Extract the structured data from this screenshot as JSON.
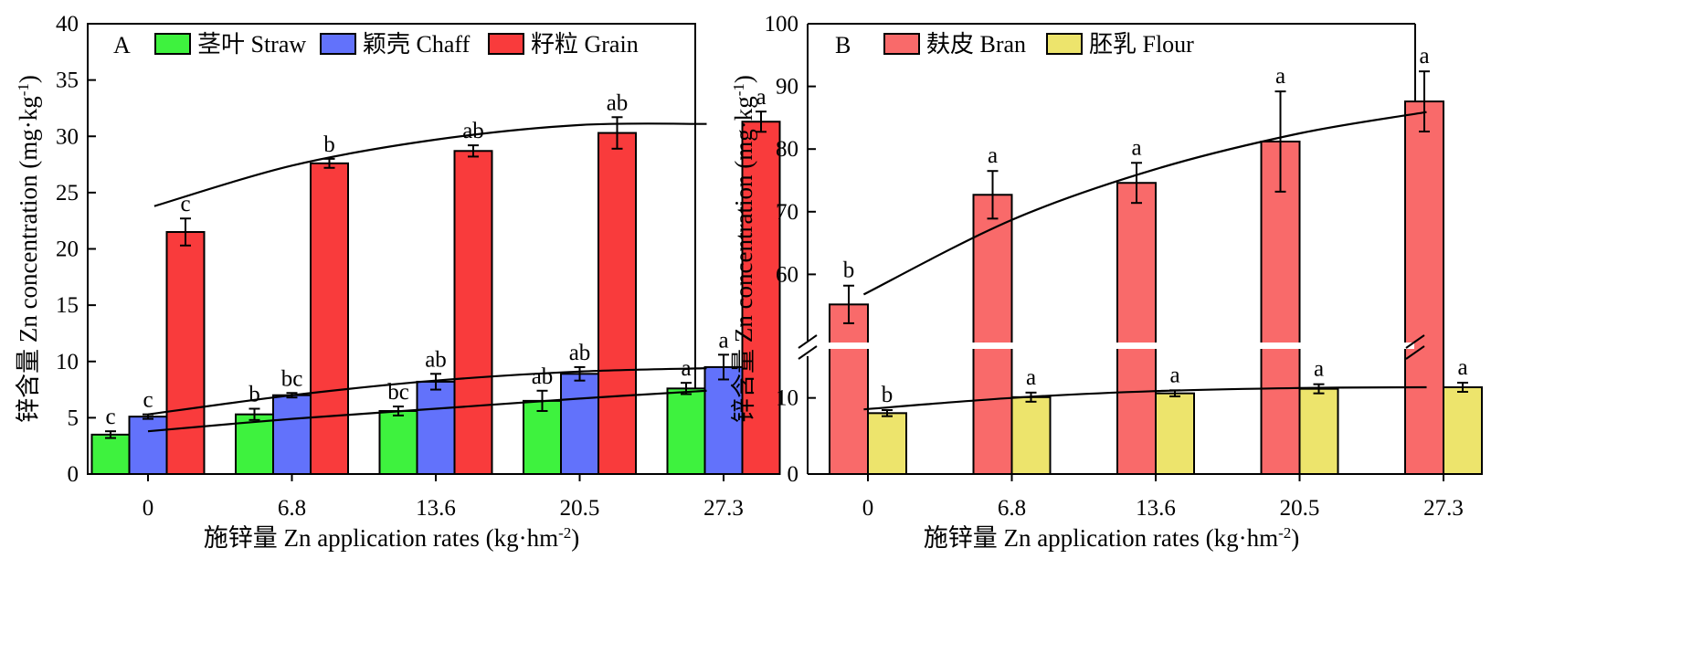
{
  "chart_data": [
    {
      "type": "bar",
      "panel_label": "A",
      "categories": [
        "0",
        "6.8",
        "13.6",
        "20.5",
        "27.3"
      ],
      "series": [
        {
          "name": "茎叶 Straw",
          "color": "#3ef23e",
          "values": [
            3.5,
            5.3,
            5.6,
            6.5,
            7.6
          ],
          "errors": [
            0.3,
            0.5,
            0.4,
            0.9,
            0.5
          ],
          "letters": [
            "c",
            "b",
            "bc",
            "ab",
            "a"
          ]
        },
        {
          "name": "颖壳 Chaff",
          "color": "#6272fb",
          "values": [
            5.1,
            7.0,
            8.2,
            8.9,
            9.5
          ],
          "errors": [
            0.2,
            0.2,
            0.7,
            0.6,
            1.1
          ],
          "letters": [
            "c",
            "bc",
            "ab",
            "ab",
            "a"
          ]
        },
        {
          "name": "籽粒 Grain",
          "color": "#f93b3c",
          "values": [
            21.5,
            27.6,
            28.7,
            30.3,
            31.3
          ],
          "errors": [
            1.2,
            0.4,
            0.5,
            1.4,
            0.9
          ],
          "letters": [
            "c",
            "b",
            "ab",
            "ab",
            "a"
          ]
        }
      ],
      "fit_lines": [
        {
          "x": [
            0.3,
            6.8,
            13.6,
            20.5,
            26.5
          ],
          "y": [
            23.8,
            27.4,
            29.7,
            31.0,
            31.1
          ]
        },
        {
          "x": [
            0,
            6.8,
            13.6,
            20.5,
            26.5
          ],
          "y": [
            5.3,
            7.0,
            8.3,
            9.1,
            9.4
          ]
        },
        {
          "x": [
            0,
            6.8,
            13.6,
            20.5,
            26.5
          ],
          "y": [
            3.8,
            4.9,
            5.8,
            6.7,
            7.4
          ]
        }
      ],
      "xlabel": "施锌量 Zn application rates (kg·hm⁻²)",
      "ylabel": "锌含量 Zn concentration (mg·kg⁻¹)",
      "ylim": [
        0,
        40
      ],
      "yticks": [
        0,
        5,
        10,
        15,
        20,
        25,
        30,
        35,
        40
      ],
      "legend_position": "top"
    },
    {
      "type": "bar",
      "panel_label": "B",
      "categories": [
        "0",
        "6.8",
        "13.6",
        "20.5",
        "27.3"
      ],
      "series": [
        {
          "name": "麸皮 Bran",
          "color": "#f96a6a",
          "values": [
            55.2,
            72.7,
            74.6,
            81.2,
            87.6
          ],
          "errors": [
            3.0,
            3.8,
            3.2,
            8.0,
            4.8
          ],
          "letters": [
            "b",
            "a",
            "a",
            "a",
            "a"
          ]
        },
        {
          "name": "胚乳 Flour",
          "color": "#ede46c",
          "values": [
            8.0,
            10.1,
            10.6,
            11.2,
            11.4
          ],
          "errors": [
            0.4,
            0.6,
            0.4,
            0.6,
            0.6
          ],
          "letters": [
            "b",
            "a",
            "a",
            "a",
            "a"
          ]
        }
      ],
      "fit_lines": [
        {
          "x": [
            -0.2,
            6.8,
            13.6,
            20.5,
            26.5
          ],
          "y": [
            56.8,
            68.7,
            76.8,
            82.5,
            85.9
          ]
        },
        {
          "x": [
            -0.2,
            6.8,
            13.6,
            20.5,
            26.5
          ],
          "y": [
            8.5,
            10.0,
            10.9,
            11.3,
            11.4
          ]
        }
      ],
      "xlabel": "施锌量 Zn application rates (kg·hm⁻²)",
      "ylabel": "锌含量 Zn concentration (mg·kg⁻¹)",
      "ylim_lower": [
        0,
        15
      ],
      "ylim_upper": [
        50,
        100
      ],
      "yticks_lower": [
        0,
        10
      ],
      "yticks_upper": [
        60,
        70,
        80,
        90,
        100
      ],
      "axis_break": true,
      "legend_position": "top"
    }
  ]
}
